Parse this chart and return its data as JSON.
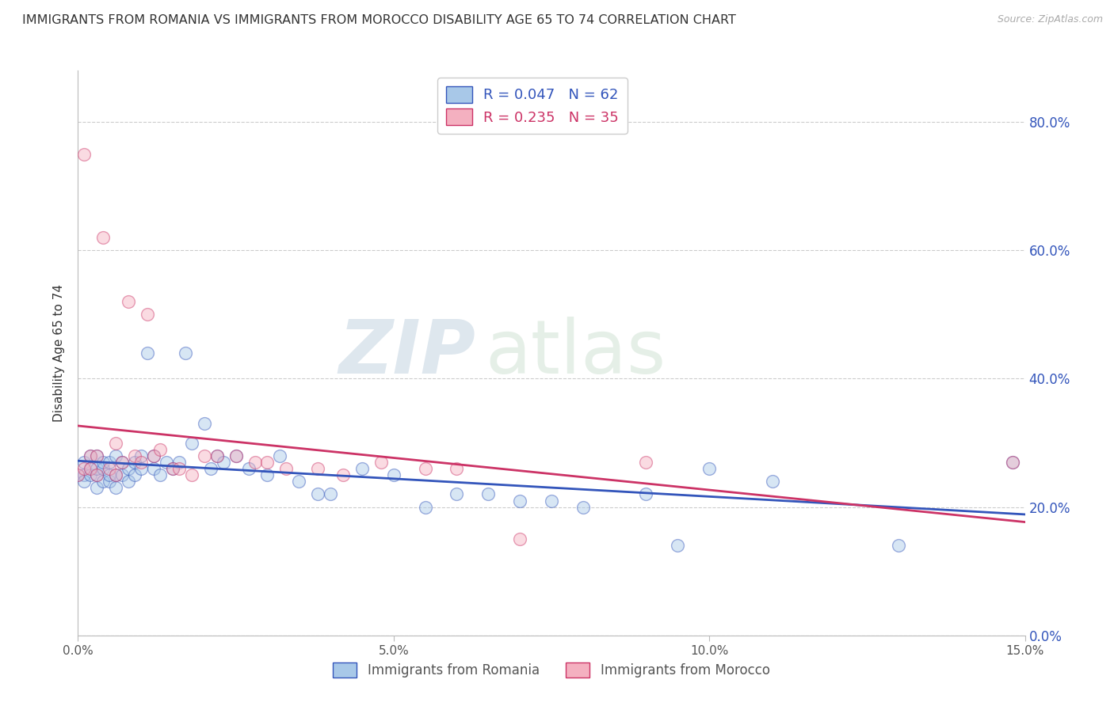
{
  "title": "IMMIGRANTS FROM ROMANIA VS IMMIGRANTS FROM MOROCCO DISABILITY AGE 65 TO 74 CORRELATION CHART",
  "source": "Source: ZipAtlas.com",
  "ylabel": "Disability Age 65 to 74",
  "xlim": [
    0.0,
    0.15
  ],
  "ylim": [
    0.0,
    0.88
  ],
  "xticks": [
    0.0,
    0.05,
    0.1,
    0.15
  ],
  "xtick_labels": [
    "0.0%",
    "5.0%",
    "10.0%",
    "15.0%"
  ],
  "yticks": [
    0.0,
    0.2,
    0.4,
    0.6,
    0.8
  ],
  "ytick_labels": [
    "0.0%",
    "20.0%",
    "40.0%",
    "60.0%",
    "80.0%"
  ],
  "romania_color": "#a8c8e8",
  "morocco_color": "#f4b0c0",
  "romania_line_color": "#3355bb",
  "morocco_line_color": "#cc3366",
  "legend_romania_label": "Immigrants from Romania",
  "legend_morocco_label": "Immigrants from Morocco",
  "R_romania": 0.047,
  "N_romania": 62,
  "R_morocco": 0.235,
  "N_morocco": 35,
  "romania_x": [
    0.0,
    0.001,
    0.001,
    0.001,
    0.002,
    0.002,
    0.002,
    0.003,
    0.003,
    0.003,
    0.003,
    0.004,
    0.004,
    0.004,
    0.005,
    0.005,
    0.005,
    0.006,
    0.006,
    0.006,
    0.007,
    0.007,
    0.008,
    0.008,
    0.009,
    0.009,
    0.01,
    0.01,
    0.011,
    0.012,
    0.012,
    0.013,
    0.014,
    0.015,
    0.016,
    0.017,
    0.018,
    0.02,
    0.021,
    0.022,
    0.023,
    0.025,
    0.027,
    0.03,
    0.032,
    0.035,
    0.038,
    0.04,
    0.045,
    0.05,
    0.055,
    0.06,
    0.065,
    0.07,
    0.075,
    0.08,
    0.09,
    0.095,
    0.1,
    0.11,
    0.13,
    0.148
  ],
  "romania_y": [
    0.25,
    0.27,
    0.25,
    0.24,
    0.26,
    0.28,
    0.25,
    0.23,
    0.25,
    0.26,
    0.28,
    0.24,
    0.26,
    0.27,
    0.24,
    0.25,
    0.27,
    0.23,
    0.25,
    0.28,
    0.25,
    0.27,
    0.24,
    0.26,
    0.25,
    0.27,
    0.26,
    0.28,
    0.44,
    0.26,
    0.28,
    0.25,
    0.27,
    0.26,
    0.27,
    0.44,
    0.3,
    0.33,
    0.26,
    0.28,
    0.27,
    0.28,
    0.26,
    0.25,
    0.28,
    0.24,
    0.22,
    0.22,
    0.26,
    0.25,
    0.2,
    0.22,
    0.22,
    0.21,
    0.21,
    0.2,
    0.22,
    0.14,
    0.26,
    0.24,
    0.14,
    0.27
  ],
  "morocco_x": [
    0.0,
    0.001,
    0.001,
    0.002,
    0.002,
    0.003,
    0.003,
    0.004,
    0.005,
    0.006,
    0.006,
    0.007,
    0.008,
    0.009,
    0.01,
    0.011,
    0.012,
    0.013,
    0.015,
    0.016,
    0.018,
    0.02,
    0.022,
    0.025,
    0.028,
    0.03,
    0.033,
    0.038,
    0.042,
    0.048,
    0.055,
    0.06,
    0.07,
    0.09,
    0.148
  ],
  "morocco_y": [
    0.25,
    0.75,
    0.26,
    0.26,
    0.28,
    0.25,
    0.28,
    0.62,
    0.26,
    0.25,
    0.3,
    0.27,
    0.52,
    0.28,
    0.27,
    0.5,
    0.28,
    0.29,
    0.26,
    0.26,
    0.25,
    0.28,
    0.28,
    0.28,
    0.27,
    0.27,
    0.26,
    0.26,
    0.25,
    0.27,
    0.26,
    0.26,
    0.15,
    0.27,
    0.27
  ],
  "watermark_zip": "ZIP",
  "watermark_atlas": "atlas",
  "background_color": "#ffffff",
  "grid_color": "#cccccc",
  "marker_size": 130,
  "marker_alpha": 0.45,
  "marker_edge_width": 1.0
}
